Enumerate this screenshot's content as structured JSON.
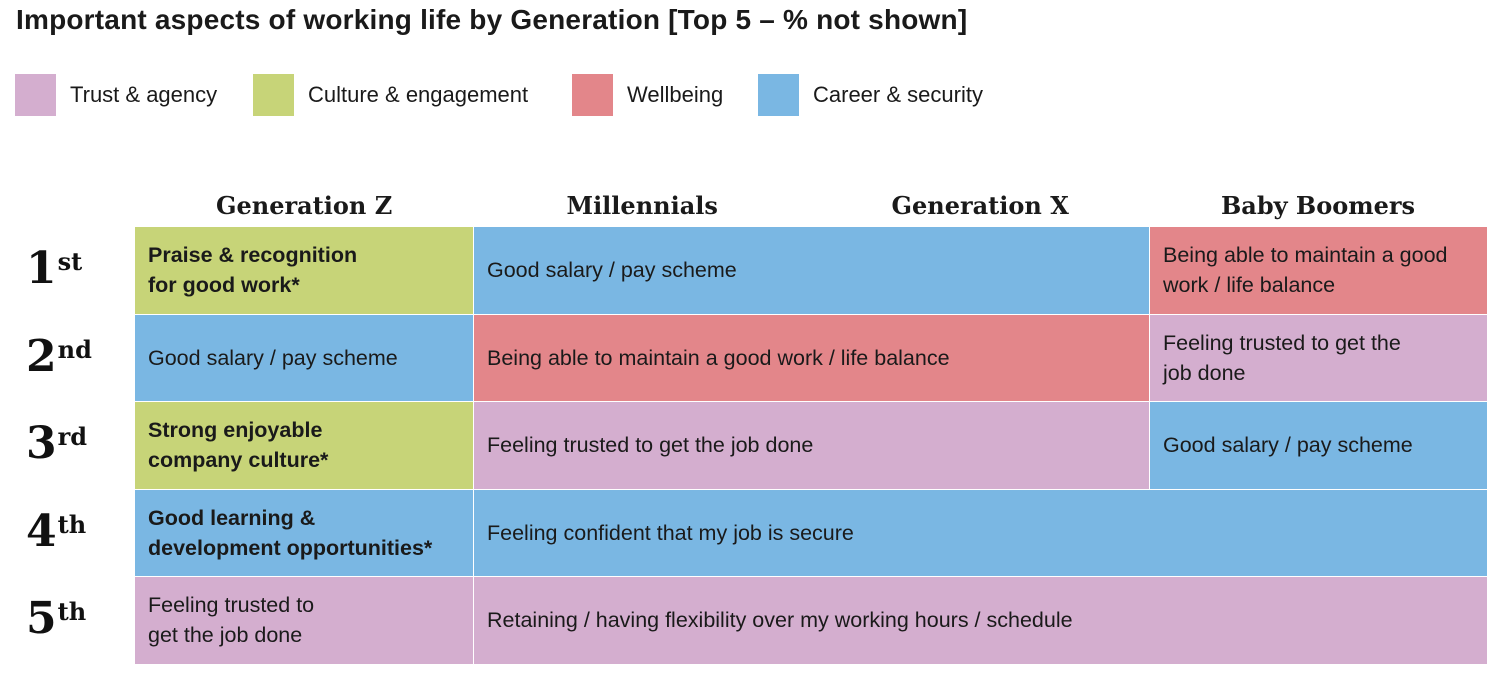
{
  "title": "Important aspects of working life by Generation [Top 5 – % not shown]",
  "legend": [
    {
      "label": "Trust & agency",
      "color": "#d4aecf"
    },
    {
      "label": "Culture & engagement",
      "color": "#c7d478"
    },
    {
      "label": "Wellbeing",
      "color": "#e3868a"
    },
    {
      "label": "Career & security",
      "color": "#7ab7e3"
    }
  ],
  "columns": [
    "Generation Z",
    "Millennials",
    "Generation X",
    "Baby Boomers"
  ],
  "ranks": [
    {
      "num": "1",
      "sup": "st"
    },
    {
      "num": "2",
      "sup": "nd"
    },
    {
      "num": "3",
      "sup": "rd"
    },
    {
      "num": "4",
      "sup": "th"
    },
    {
      "num": "5",
      "sup": "th"
    }
  ],
  "chart_data": {
    "type": "table",
    "title": "Important aspects of working life by Generation [Top 5 – % not shown]",
    "columns": [
      "Generation Z",
      "Millennials",
      "Generation X",
      "Baby Boomers"
    ],
    "rows": [
      "1st",
      "2nd",
      "3rd",
      "4th",
      "5th"
    ],
    "cells": [
      {
        "rank": 1,
        "col_start": 0,
        "col_span": 1,
        "text": [
          "Praise & recognition",
          "for good work*"
        ],
        "category": "Culture & engagement",
        "bold": true
      },
      {
        "rank": 1,
        "col_start": 1,
        "col_span": 2,
        "text": [
          "Good salary / pay scheme"
        ],
        "category": "Career & security",
        "bold": false
      },
      {
        "rank": 1,
        "col_start": 3,
        "col_span": 1,
        "text": [
          "Being able to maintain a good",
          "work / life balance"
        ],
        "category": "Wellbeing",
        "bold": false
      },
      {
        "rank": 2,
        "col_start": 0,
        "col_span": 1,
        "text": [
          "Good salary / pay scheme"
        ],
        "category": "Career & security",
        "bold": false
      },
      {
        "rank": 2,
        "col_start": 1,
        "col_span": 2,
        "text": [
          "Being able to maintain a good work / life balance"
        ],
        "category": "Wellbeing",
        "bold": false
      },
      {
        "rank": 2,
        "col_start": 3,
        "col_span": 1,
        "text": [
          "Feeling trusted to get the",
          "job done"
        ],
        "category": "Trust & agency",
        "bold": false
      },
      {
        "rank": 3,
        "col_start": 0,
        "col_span": 1,
        "text": [
          "Strong enjoyable",
          "company culture*"
        ],
        "category": "Culture & engagement",
        "bold": true
      },
      {
        "rank": 3,
        "col_start": 1,
        "col_span": 2,
        "text": [
          "Feeling trusted to get the job done"
        ],
        "category": "Trust & agency",
        "bold": false
      },
      {
        "rank": 3,
        "col_start": 3,
        "col_span": 1,
        "text": [
          "Good salary / pay scheme"
        ],
        "category": "Career & security",
        "bold": false
      },
      {
        "rank": 4,
        "col_start": 0,
        "col_span": 1,
        "text": [
          "Good learning &",
          "development opportunities*"
        ],
        "category": "Career & security",
        "bold": true
      },
      {
        "rank": 4,
        "col_start": 1,
        "col_span": 3,
        "text": [
          "Feeling confident that my job is secure"
        ],
        "category": "Career & security",
        "bold": false
      },
      {
        "rank": 5,
        "col_start": 0,
        "col_span": 1,
        "text": [
          "Feeling trusted to",
          "get the job done"
        ],
        "category": "Trust & agency",
        "bold": false
      },
      {
        "rank": 5,
        "col_start": 1,
        "col_span": 3,
        "text": [
          "Retaining / having flexibility over my working hours / schedule"
        ],
        "category": "Trust & agency",
        "bold": false
      }
    ]
  }
}
